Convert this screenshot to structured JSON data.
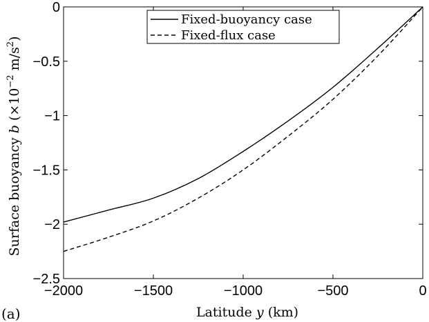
{
  "chart_data": {
    "type": "line",
    "panel_label": "(a)",
    "xlabel_parts": [
      "Latitude ",
      "y",
      " (km)"
    ],
    "ylabel_parts": [
      "Surface buoyancy ",
      "b",
      " (×10",
      "−2",
      " m/s",
      "2",
      ")"
    ],
    "xlim": [
      -2000,
      0
    ],
    "ylim": [
      -2.5,
      0
    ],
    "xticks": [
      -2000,
      -1500,
      -1000,
      -500,
      0
    ],
    "xtick_labels": [
      "−2000",
      "−1500",
      "−1000",
      "−500",
      "0"
    ],
    "yticks": [
      0,
      -0.5,
      -1,
      -1.5,
      -2,
      -2.5
    ],
    "ytick_labels": [
      "0",
      "−0.5",
      "−1",
      "−1.5",
      "−2",
      "−2.5"
    ],
    "grid": false,
    "legend_position": "top-center",
    "series": [
      {
        "name": "Fixed-buoyancy case",
        "style": "solid",
        "color": "#000000",
        "x": [
          -2000,
          -1750,
          -1500,
          -1250,
          -1000,
          -750,
          -500,
          -250,
          0
        ],
        "y": [
          -1.98,
          -1.87,
          -1.76,
          -1.58,
          -1.33,
          -1.05,
          -0.74,
          -0.38,
          0.0
        ]
      },
      {
        "name": "Fixed-flux case",
        "style": "dashed",
        "color": "#000000",
        "x": [
          -2000,
          -1750,
          -1500,
          -1250,
          -1000,
          -750,
          -500,
          -250,
          0
        ],
        "y": [
          -2.25,
          -2.12,
          -1.97,
          -1.76,
          -1.5,
          -1.19,
          -0.85,
          -0.45,
          0.0
        ]
      }
    ]
  }
}
